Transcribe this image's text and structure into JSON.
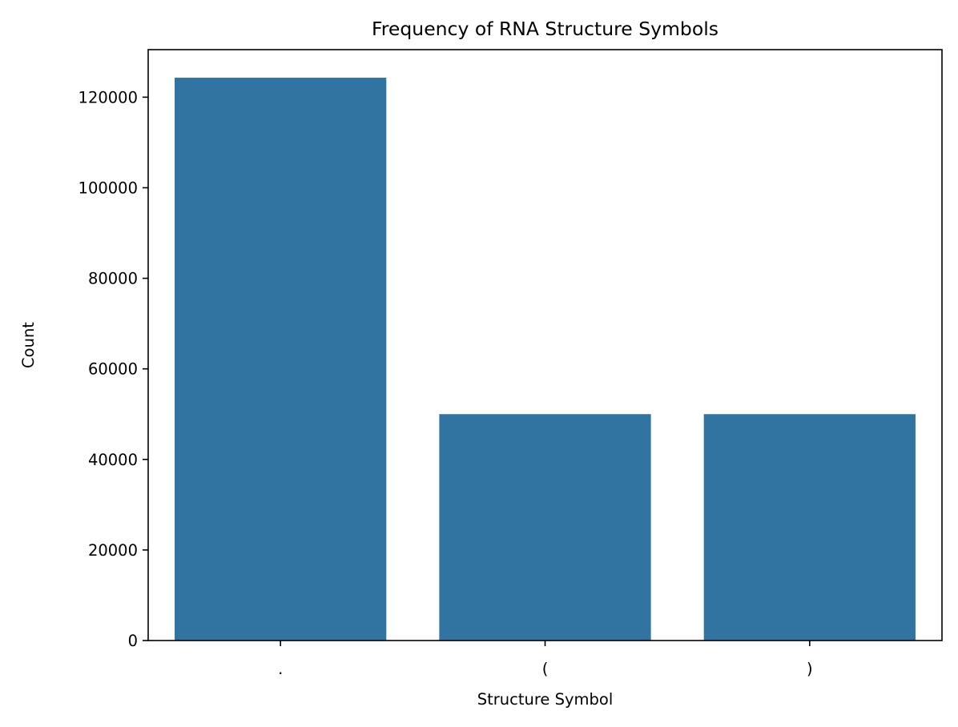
{
  "chart_data": {
    "type": "bar",
    "title": "Frequency of RNA Structure Symbols",
    "xlabel": "Structure Symbol",
    "ylabel": "Count",
    "categories": [
      ".",
      "(",
      ")"
    ],
    "values": [
      124300,
      50000,
      50000
    ],
    "ylim": [
      0,
      130500
    ],
    "yticks": [
      0,
      20000,
      40000,
      60000,
      80000,
      100000,
      120000
    ],
    "grid": false,
    "legend": "none",
    "bar_color": "#3274a1"
  }
}
